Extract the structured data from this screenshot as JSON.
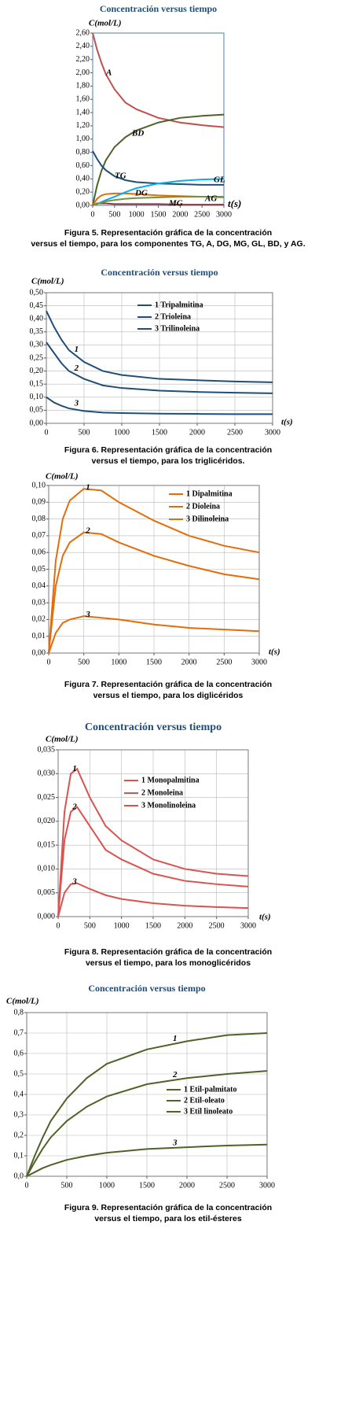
{
  "chart_data": [
    {
      "type": "line",
      "title": "Concentración versus tiempo",
      "ylabel": "C(mol/L)",
      "xlabel": "t(s)",
      "grid": false,
      "caption": [
        "Figura 5. Representación gráfica de la concentración",
        "versus el tiempo, para los componentes TG, A, DG, MG, GL, BD, y AG."
      ],
      "x": [
        0,
        100,
        200,
        300,
        500,
        750,
        1000,
        1500,
        2000,
        2500,
        3000
      ],
      "xlim": [
        0,
        3000
      ],
      "xticks": [
        0,
        500,
        1000,
        1500,
        2000,
        2500,
        3000
      ],
      "ylim": [
        0,
        2.6
      ],
      "yticks": [
        {
          "value": 0,
          "label": "0,00"
        },
        {
          "value": 0.2,
          "label": "0,20"
        },
        {
          "value": 0.4,
          "label": "0,40"
        },
        {
          "value": 0.6,
          "label": "0,60"
        },
        {
          "value": 0.8,
          "label": "0,80"
        },
        {
          "value": 1.0,
          "label": "1,00"
        },
        {
          "value": 1.2,
          "label": "1,20"
        },
        {
          "value": 1.4,
          "label": "1,40"
        },
        {
          "value": 1.6,
          "label": "1,60"
        },
        {
          "value": 1.8,
          "label": "1,80"
        },
        {
          "value": 2.0,
          "label": "2,00"
        },
        {
          "value": 2.2,
          "label": "2,20"
        },
        {
          "value": 2.4,
          "label": "2,40"
        },
        {
          "value": 2.6,
          "label": "2,60"
        }
      ],
      "series": [
        {
          "name": "A",
          "color": "#c0504d",
          "values": [
            2.6,
            2.35,
            2.15,
            1.98,
            1.75,
            1.55,
            1.45,
            1.32,
            1.25,
            1.21,
            1.18
          ]
        },
        {
          "name": "BD",
          "color": "#4f6228",
          "values": [
            0,
            0.3,
            0.52,
            0.68,
            0.88,
            1.03,
            1.13,
            1.25,
            1.32,
            1.35,
            1.37
          ]
        },
        {
          "name": "TG",
          "color": "#1f4e79",
          "values": [
            0.82,
            0.7,
            0.6,
            0.53,
            0.44,
            0.38,
            0.35,
            0.33,
            0.32,
            0.31,
            0.31
          ]
        },
        {
          "name": "DG",
          "color": "#e46c0a",
          "values": [
            0,
            0.1,
            0.15,
            0.17,
            0.18,
            0.18,
            0.17,
            0.15,
            0.14,
            0.13,
            0.12
          ]
        },
        {
          "name": "MG",
          "color": "#953735",
          "values": [
            0,
            0.03,
            0.03,
            0.03,
            0.02,
            0.02,
            0.02,
            0.02,
            0.01,
            0.01,
            0.01
          ]
        },
        {
          "name": "GL",
          "color": "#00b0f0",
          "values": [
            0,
            0.02,
            0.05,
            0.08,
            0.13,
            0.2,
            0.26,
            0.33,
            0.37,
            0.39,
            0.4
          ]
        },
        {
          "name": "AG",
          "color": "#76923c",
          "values": [
            0,
            0.02,
            0.04,
            0.06,
            0.08,
            0.1,
            0.11,
            0.12,
            0.13,
            0.13,
            0.13
          ]
        }
      ]
    },
    {
      "type": "line",
      "title": "Concentración versus tiempo",
      "ylabel": "C(mol/L)",
      "xlabel": "t(s)",
      "grid": true,
      "caption": [
        "Figura 6. Representación gráfica de la concentración",
        "versus el tiempo, para los triglicéridos."
      ],
      "x": [
        0,
        100,
        200,
        300,
        500,
        750,
        1000,
        1500,
        2000,
        2500,
        3000
      ],
      "xlim": [
        0,
        3000
      ],
      "xticks": [
        0,
        500,
        1000,
        1500,
        2000,
        2500,
        3000
      ],
      "ylim": [
        0,
        0.5
      ],
      "yticks": [
        {
          "value": 0,
          "label": "0,00"
        },
        {
          "value": 0.05,
          "label": "0,05"
        },
        {
          "value": 0.1,
          "label": "0,10"
        },
        {
          "value": 0.15,
          "label": "0,15"
        },
        {
          "value": 0.2,
          "label": "0,20"
        },
        {
          "value": 0.25,
          "label": "0,25"
        },
        {
          "value": 0.3,
          "label": "0,30"
        },
        {
          "value": 0.35,
          "label": "0,35"
        },
        {
          "value": 0.4,
          "label": "0,40"
        },
        {
          "value": 0.45,
          "label": "0,45"
        },
        {
          "value": 0.5,
          "label": "0,50"
        }
      ],
      "series": [
        {
          "name": "1 Tripalmitina",
          "label": "1",
          "color": "#1f4e79",
          "values": [
            0.43,
            0.37,
            0.32,
            0.28,
            0.235,
            0.2,
            0.185,
            0.17,
            0.165,
            0.16,
            0.157
          ]
        },
        {
          "name": "2 Trioleina",
          "label": "2",
          "color": "#1f4e79",
          "values": [
            0.31,
            0.27,
            0.23,
            0.2,
            0.17,
            0.145,
            0.135,
            0.125,
            0.12,
            0.117,
            0.115
          ]
        },
        {
          "name": "3 Trilinoleina",
          "label": "3",
          "color": "#1f4e79",
          "values": [
            0.1,
            0.08,
            0.067,
            0.057,
            0.047,
            0.041,
            0.039,
            0.037,
            0.036,
            0.035,
            0.035
          ]
        }
      ]
    },
    {
      "type": "line",
      "ylabel": "C(mol/L)",
      "xlabel": "t(s)",
      "grid": true,
      "caption": [
        "Figura 7. Representación gráfica de la concentración",
        "versus el tiempo, para los diglicéridos"
      ],
      "x": [
        0,
        100,
        200,
        300,
        500,
        750,
        1000,
        1500,
        2000,
        2500,
        3000
      ],
      "xlim": [
        0,
        3000
      ],
      "xticks": [
        0,
        500,
        1000,
        1500,
        2000,
        2500,
        3000
      ],
      "ylim": [
        0,
        0.1
      ],
      "yticks": [
        {
          "value": 0,
          "label": "0,00"
        },
        {
          "value": 0.01,
          "label": "0,01"
        },
        {
          "value": 0.02,
          "label": "0,02"
        },
        {
          "value": 0.03,
          "label": "0,03"
        },
        {
          "value": 0.04,
          "label": "0,04"
        },
        {
          "value": 0.05,
          "label": "0,05"
        },
        {
          "value": 0.06,
          "label": "0,06"
        },
        {
          "value": 0.07,
          "label": "0,07"
        },
        {
          "value": 0.08,
          "label": "0,08"
        },
        {
          "value": 0.09,
          "label": "0,09"
        },
        {
          "value": 0.1,
          "label": "0,10"
        }
      ],
      "series": [
        {
          "name": "1 Dipalmitina",
          "label": "1",
          "color": "#e46c0a",
          "values": [
            0,
            0.055,
            0.08,
            0.091,
            0.098,
            0.097,
            0.09,
            0.079,
            0.07,
            0.064,
            0.06
          ]
        },
        {
          "name": "2 Dioleina",
          "label": "2",
          "color": "#e46c0a",
          "values": [
            0,
            0.04,
            0.058,
            0.066,
            0.072,
            0.071,
            0.066,
            0.058,
            0.052,
            0.047,
            0.044
          ]
        },
        {
          "name": "3 Dilinoleina",
          "label": "3",
          "color": "#e46c0a",
          "values": [
            0,
            0.012,
            0.018,
            0.02,
            0.022,
            0.021,
            0.02,
            0.017,
            0.015,
            0.014,
            0.013
          ]
        }
      ]
    },
    {
      "type": "line",
      "title": "Concentración versus tiempo",
      "ylabel": "C(mol/L)",
      "xlabel": "t(s)",
      "grid": true,
      "caption": [
        "Figura 8. Representación gráfica de la concentración",
        "versus el tiempo, para los monoglicéridos"
      ],
      "x": [
        0,
        100,
        200,
        300,
        500,
        750,
        1000,
        1500,
        2000,
        2500,
        3000
      ],
      "xlim": [
        0,
        3000
      ],
      "xticks": [
        0,
        500,
        1000,
        1500,
        2000,
        2500,
        3000
      ],
      "ylim": [
        0,
        0.035
      ],
      "yticks": [
        {
          "value": 0,
          "label": "0,000"
        },
        {
          "value": 0.005,
          "label": "0,005"
        },
        {
          "value": 0.01,
          "label": "0,010"
        },
        {
          "value": 0.015,
          "label": "0,015"
        },
        {
          "value": 0.02,
          "label": "0,020"
        },
        {
          "value": 0.025,
          "label": "0,025"
        },
        {
          "value": 0.03,
          "label": "0,030"
        },
        {
          "value": 0.035,
          "label": "0,035"
        }
      ],
      "series": [
        {
          "name": "1 Monopalmitina",
          "label": "1",
          "color": "#d9534f",
          "values": [
            0,
            0.022,
            0.03,
            0.031,
            0.025,
            0.019,
            0.016,
            0.012,
            0.01,
            0.009,
            0.0085
          ]
        },
        {
          "name": "2 Monoleina",
          "label": "2",
          "color": "#d9534f",
          "values": [
            0,
            0.016,
            0.022,
            0.023,
            0.019,
            0.014,
            0.012,
            0.009,
            0.0075,
            0.0068,
            0.0063
          ]
        },
        {
          "name": "3 Monolinoleina",
          "label": "3",
          "color": "#d9534f",
          "values": [
            0,
            0.005,
            0.0068,
            0.007,
            0.0058,
            0.0045,
            0.0037,
            0.0028,
            0.0023,
            0.002,
            0.0018
          ]
        }
      ]
    },
    {
      "type": "line",
      "title": "Concentración versus tiempo",
      "ylabel": "C(mol/L)",
      "grid": true,
      "caption": [
        "Figura 9. Representación gráfica de la concentración",
        "versus el tiempo, para los etil-ésteres"
      ],
      "x": [
        0,
        100,
        200,
        300,
        500,
        750,
        1000,
        1500,
        2000,
        2500,
        3000
      ],
      "xlim": [
        0,
        3000
      ],
      "xticks": [
        0,
        500,
        1000,
        1500,
        2000,
        2500,
        3000
      ],
      "ylim": [
        0,
        0.8
      ],
      "yticks": [
        {
          "value": 0,
          "label": "0,0"
        },
        {
          "value": 0.1,
          "label": "0,1"
        },
        {
          "value": 0.2,
          "label": "0,2"
        },
        {
          "value": 0.3,
          "label": "0,3"
        },
        {
          "value": 0.4,
          "label": "0,4"
        },
        {
          "value": 0.5,
          "label": "0,5"
        },
        {
          "value": 0.6,
          "label": "0,6"
        },
        {
          "value": 0.7,
          "label": "0,7"
        },
        {
          "value": 0.8,
          "label": "0,8"
        }
      ],
      "series": [
        {
          "name": "1 Etil-palmitato",
          "label": "1",
          "color": "#4f6228",
          "values": [
            0,
            0.1,
            0.19,
            0.27,
            0.38,
            0.48,
            0.55,
            0.62,
            0.66,
            0.69,
            0.7
          ]
        },
        {
          "name": "2 Etil-oleato",
          "label": "2",
          "color": "#4f6228",
          "values": [
            0,
            0.07,
            0.135,
            0.19,
            0.27,
            0.34,
            0.39,
            0.45,
            0.48,
            0.5,
            0.515
          ]
        },
        {
          "name": "3 Etil linoleato",
          "label": "3",
          "color": "#4f6228",
          "values": [
            0,
            0.02,
            0.04,
            0.055,
            0.08,
            0.1,
            0.115,
            0.133,
            0.142,
            0.15,
            0.155
          ]
        }
      ]
    }
  ]
}
